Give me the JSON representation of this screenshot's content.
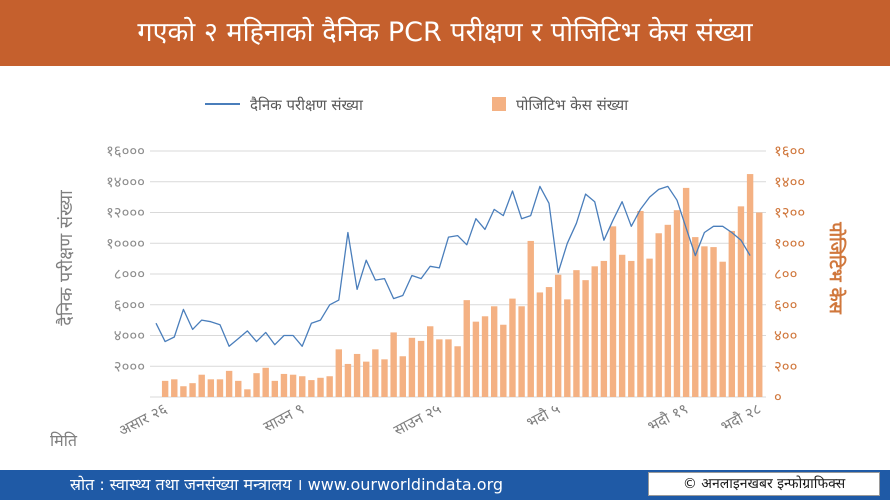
{
  "header": {
    "title": "गएको २ महिनाको दैनिक PCR परीक्षण र पोजिटिभ केस संख्या"
  },
  "colors": {
    "banner": "#c5602d",
    "footer": "#1f5aa6",
    "line": "#4a7ebb",
    "bars": "#f4b183",
    "right_axis": "#d0773c",
    "left_axis": "#7f7f7f"
  },
  "chart_data": {
    "type": "bar",
    "title": "गएको २ महिनाको दैनिक PCR परीक्षण र पोजिटिभ केस संख्या",
    "xlabel": "मिति",
    "ylabel": "दैनिक परीक्षण संख्या",
    "y2label": "पोजिटिभ केस",
    "ylim": [
      0,
      16000
    ],
    "y2lim": [
      0,
      1600
    ],
    "grid": true,
    "legend": "top",
    "y_ticks": [
      {
        "value": 2000,
        "label": "२०००"
      },
      {
        "value": 4000,
        "label": "४०००"
      },
      {
        "value": 6000,
        "label": "६०००"
      },
      {
        "value": 8000,
        "label": "८०००"
      },
      {
        "value": 10000,
        "label": "१००००"
      },
      {
        "value": 12000,
        "label": "१२०००"
      },
      {
        "value": 14000,
        "label": "१४०००"
      },
      {
        "value": 16000,
        "label": "१६०००"
      }
    ],
    "y2_ticks": [
      {
        "value": 0,
        "label": "०"
      },
      {
        "value": 200,
        "label": "२००"
      },
      {
        "value": 400,
        "label": "४००"
      },
      {
        "value": 600,
        "label": "६००"
      },
      {
        "value": 800,
        "label": "८००"
      },
      {
        "value": 1000,
        "label": "१०००"
      },
      {
        "value": 1200,
        "label": "१२००"
      },
      {
        "value": 1400,
        "label": "१४००"
      },
      {
        "value": 1600,
        "label": "१६००"
      }
    ],
    "x_ticks": [
      {
        "index": 0,
        "label": "असार २६"
      },
      {
        "index": 15,
        "label": "साउन ९"
      },
      {
        "index": 30,
        "label": "साउन २५"
      },
      {
        "index": 43,
        "label": "भदौ ५"
      },
      {
        "index": 57,
        "label": "भदौ १९"
      },
      {
        "index": 65,
        "label": "भदौ २८"
      }
    ],
    "series": [
      {
        "name": "दैनिक परीक्षण संख्या",
        "type": "line",
        "axis": "left",
        "values": [
          4800,
          3600,
          3900,
          5700,
          4400,
          5000,
          4900,
          4700,
          3300,
          3800,
          4300,
          3600,
          4200,
          3400,
          4000,
          4000,
          3300,
          4800,
          5000,
          6000,
          6300,
          10700,
          7000,
          8900,
          7600,
          7700,
          6400,
          6600,
          7900,
          7700,
          8500,
          8400,
          10400,
          10500,
          9900,
          11600,
          10900,
          12200,
          11800,
          13400,
          11600,
          11800,
          13700,
          12600,
          8100,
          10000,
          11300,
          13200,
          12700,
          10200,
          11500,
          12700,
          11100,
          12200,
          13000,
          13500,
          13700,
          12800,
          11000,
          9200,
          10700,
          11100,
          11100,
          10700,
          10200,
          9200,
          null
        ]
      },
      {
        "name": "पोजिटिभ केस संख्या",
        "type": "bar",
        "axis": "right",
        "values": [
          null,
          105,
          115,
          70,
          90,
          145,
          115,
          115,
          170,
          105,
          50,
          155,
          190,
          105,
          150,
          145,
          135,
          110,
          125,
          135,
          310,
          215,
          280,
          230,
          310,
          245,
          420,
          265,
          385,
          365,
          460,
          375,
          375,
          330,
          630,
          490,
          525,
          590,
          470,
          640,
          590,
          1015,
          680,
          715,
          795,
          635,
          825,
          760,
          850,
          885,
          1110,
          925,
          885,
          1210,
          900,
          1065,
          1120,
          1215,
          1360,
          1040,
          980,
          975,
          880,
          1080,
          1240,
          1450,
          1200
        ]
      }
    ]
  },
  "footer": {
    "source": "स्रोत : स्वास्थ्य तथा जनसंख्या मन्त्रालय । www.ourworldindata.org",
    "credit": "© अनलाइनखबर इन्फोग्राफिक्स"
  }
}
